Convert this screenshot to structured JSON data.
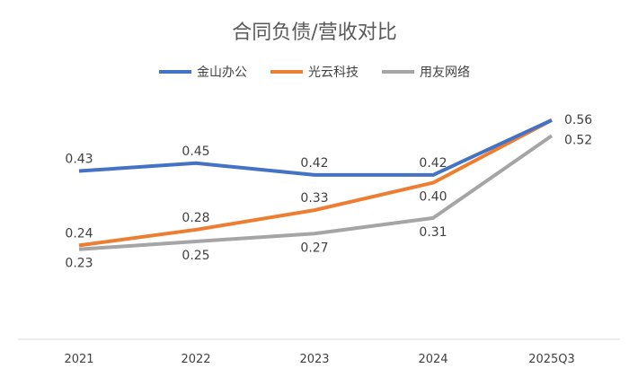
{
  "chart_data": {
    "type": "line",
    "title": "合同负债/营收对比",
    "categories": [
      "2021",
      "2022",
      "2023",
      "2024",
      "2025Q3"
    ],
    "series": [
      {
        "name": "金山办公",
        "color": "#4472C4",
        "values": [
          0.43,
          0.45,
          0.42,
          0.42,
          0.56
        ],
        "labels": [
          "0.43",
          "0.45",
          "0.42",
          "0.42",
          "0.56"
        ]
      },
      {
        "name": "光云科技",
        "color": "#ED7D31",
        "values": [
          0.24,
          0.28,
          0.33,
          0.4,
          0.56
        ],
        "labels": [
          "0.24",
          "0.28",
          "0.33",
          "0.40",
          ""
        ]
      },
      {
        "name": "用友网络",
        "color": "#A5A5A5",
        "values": [
          0.23,
          0.25,
          0.27,
          0.31,
          0.52
        ],
        "labels": [
          "0.23",
          "0.25",
          "0.27",
          "0.31",
          "0.52"
        ]
      }
    ],
    "ylim": [
      0,
      0.6
    ],
    "grid": false,
    "legend": "top"
  }
}
